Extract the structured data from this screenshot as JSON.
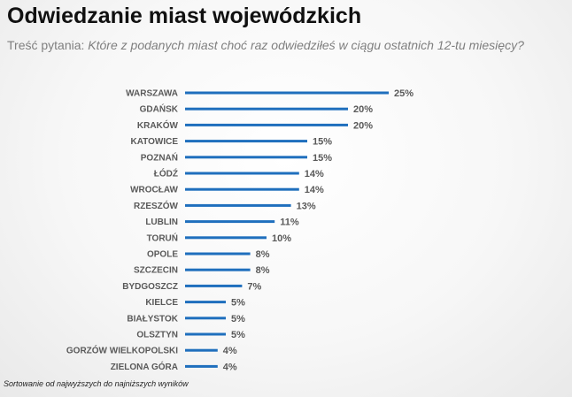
{
  "title": "Odwiedzanie miast wojewódzkich",
  "question": {
    "prefix": "Treść pytania:",
    "text": "Które z podanych miast choć raz odwiedziłeś w ciągu ostatnich 12-tu miesięcy?"
  },
  "footnote": "Sortowanie od najwyższych do najniższych wyników",
  "colors": {
    "bar": "#1f6fbd",
    "label": "#595959"
  },
  "chart_data": {
    "type": "bar",
    "orientation": "horizontal",
    "title": "Odwiedzanie miast wojewódzkich",
    "xlabel": "",
    "ylabel": "",
    "xlim": [
      0,
      25
    ],
    "value_format": "{v}%",
    "categories": [
      "WARSZAWA",
      "GDAŃSK",
      "KRAKÓW",
      "KATOWICE",
      "POZNAŃ",
      "ŁÓDŹ",
      "WROCŁAW",
      "RZESZÓW",
      "LUBLIN",
      "TORUŃ",
      "OPOLE",
      "SZCZECIN",
      "BYDGOSZCZ",
      "KIELCE",
      "BIAŁYSTOK",
      "OLSZTYN",
      "GORZÓW WIELKOPOLSKI",
      "ZIELONA GÓRA"
    ],
    "values": [
      25,
      20,
      20,
      15,
      15,
      14,
      14,
      13,
      11,
      10,
      8,
      8,
      7,
      5,
      5,
      5,
      4,
      4
    ]
  }
}
